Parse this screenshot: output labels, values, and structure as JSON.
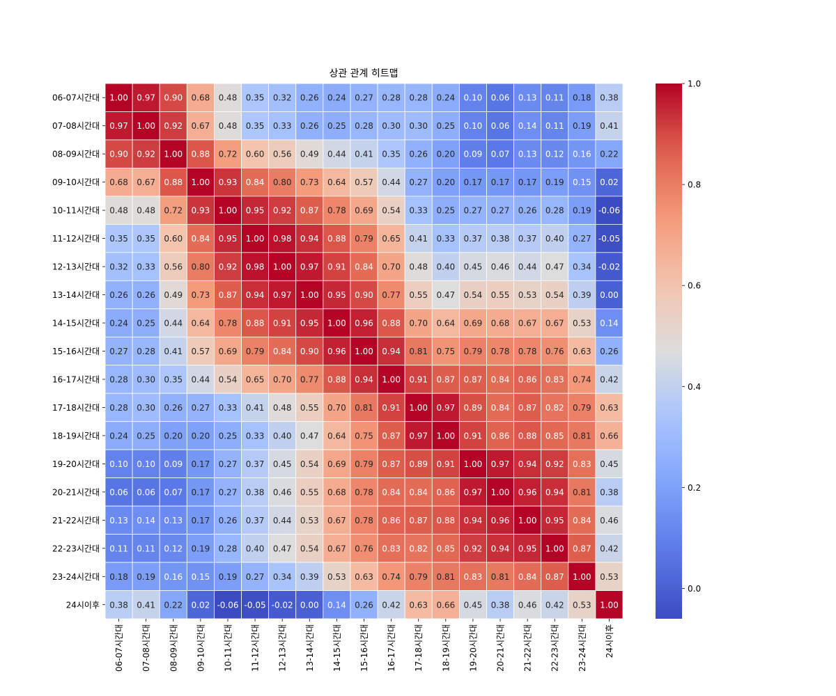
{
  "chart_data": {
    "type": "heatmap",
    "title": "상관 관계 히트맵",
    "labels": [
      "06-07시간대",
      "07-08시간대",
      "08-09시간대",
      "09-10시간대",
      "10-11시간대",
      "11-12시간대",
      "12-13시간대",
      "13-14시간대",
      "14-15시간대",
      "15-16시간대",
      "16-17시간대",
      "17-18시간대",
      "18-19시간대",
      "19-20시간대",
      "20-21시간대",
      "21-22시간대",
      "22-23시간대",
      "23-24시간대",
      "24시이후"
    ],
    "values": [
      [
        1.0,
        0.97,
        0.9,
        0.68,
        0.48,
        0.35,
        0.32,
        0.26,
        0.24,
        0.27,
        0.28,
        0.28,
        0.24,
        0.1,
        0.06,
        0.13,
        0.11,
        0.18,
        0.38
      ],
      [
        0.97,
        1.0,
        0.92,
        0.67,
        0.48,
        0.35,
        0.33,
        0.26,
        0.25,
        0.28,
        0.3,
        0.3,
        0.25,
        0.1,
        0.06,
        0.14,
        0.11,
        0.19,
        0.41
      ],
      [
        0.9,
        0.92,
        1.0,
        0.88,
        0.72,
        0.6,
        0.56,
        0.49,
        0.44,
        0.41,
        0.35,
        0.26,
        0.2,
        0.09,
        0.07,
        0.13,
        0.12,
        0.16,
        0.22
      ],
      [
        0.68,
        0.67,
        0.88,
        1.0,
        0.93,
        0.84,
        0.8,
        0.73,
        0.64,
        0.57,
        0.44,
        0.27,
        0.2,
        0.17,
        0.17,
        0.17,
        0.19,
        0.15,
        0.02
      ],
      [
        0.48,
        0.48,
        0.72,
        0.93,
        1.0,
        0.95,
        0.92,
        0.87,
        0.78,
        0.69,
        0.54,
        0.33,
        0.25,
        0.27,
        0.27,
        0.26,
        0.28,
        0.19,
        -0.06
      ],
      [
        0.35,
        0.35,
        0.6,
        0.84,
        0.95,
        1.0,
        0.98,
        0.94,
        0.88,
        0.79,
        0.65,
        0.41,
        0.33,
        0.37,
        0.38,
        0.37,
        0.4,
        0.27,
        -0.05
      ],
      [
        0.32,
        0.33,
        0.56,
        0.8,
        0.92,
        0.98,
        1.0,
        0.97,
        0.91,
        0.84,
        0.7,
        0.48,
        0.4,
        0.45,
        0.46,
        0.44,
        0.47,
        0.34,
        -0.02
      ],
      [
        0.26,
        0.26,
        0.49,
        0.73,
        0.87,
        0.94,
        0.97,
        1.0,
        0.95,
        0.9,
        0.77,
        0.55,
        0.47,
        0.54,
        0.55,
        0.53,
        0.54,
        0.39,
        -0.0
      ],
      [
        0.24,
        0.25,
        0.44,
        0.64,
        0.78,
        0.88,
        0.91,
        0.95,
        1.0,
        0.96,
        0.88,
        0.7,
        0.64,
        0.69,
        0.68,
        0.67,
        0.67,
        0.53,
        0.14
      ],
      [
        0.27,
        0.28,
        0.41,
        0.57,
        0.69,
        0.79,
        0.84,
        0.9,
        0.96,
        1.0,
        0.94,
        0.81,
        0.75,
        0.79,
        0.78,
        0.78,
        0.76,
        0.63,
        0.26
      ],
      [
        0.28,
        0.3,
        0.35,
        0.44,
        0.54,
        0.65,
        0.7,
        0.77,
        0.88,
        0.94,
        1.0,
        0.91,
        0.87,
        0.87,
        0.84,
        0.86,
        0.83,
        0.74,
        0.42
      ],
      [
        0.28,
        0.3,
        0.26,
        0.27,
        0.33,
        0.41,
        0.48,
        0.55,
        0.7,
        0.81,
        0.91,
        1.0,
        0.97,
        0.89,
        0.84,
        0.87,
        0.82,
        0.79,
        0.63
      ],
      [
        0.24,
        0.25,
        0.2,
        0.2,
        0.25,
        0.33,
        0.4,
        0.47,
        0.64,
        0.75,
        0.87,
        0.97,
        1.0,
        0.91,
        0.86,
        0.88,
        0.85,
        0.81,
        0.66
      ],
      [
        0.1,
        0.1,
        0.09,
        0.17,
        0.27,
        0.37,
        0.45,
        0.54,
        0.69,
        0.79,
        0.87,
        0.89,
        0.91,
        1.0,
        0.97,
        0.94,
        0.92,
        0.83,
        0.45
      ],
      [
        0.06,
        0.06,
        0.07,
        0.17,
        0.27,
        0.38,
        0.46,
        0.55,
        0.68,
        0.78,
        0.84,
        0.84,
        0.86,
        0.97,
        1.0,
        0.96,
        0.94,
        0.81,
        0.38
      ],
      [
        0.13,
        0.14,
        0.13,
        0.17,
        0.26,
        0.37,
        0.44,
        0.53,
        0.67,
        0.78,
        0.86,
        0.87,
        0.88,
        0.94,
        0.96,
        1.0,
        0.95,
        0.84,
        0.46
      ],
      [
        0.11,
        0.11,
        0.12,
        0.19,
        0.28,
        0.4,
        0.47,
        0.54,
        0.67,
        0.76,
        0.83,
        0.82,
        0.85,
        0.92,
        0.94,
        0.95,
        1.0,
        0.87,
        0.42
      ],
      [
        0.18,
        0.19,
        0.16,
        0.15,
        0.19,
        0.27,
        0.34,
        0.39,
        0.53,
        0.63,
        0.74,
        0.79,
        0.81,
        0.83,
        0.81,
        0.84,
        0.87,
        1.0,
        0.53
      ],
      [
        0.38,
        0.41,
        0.22,
        0.02,
        -0.06,
        -0.05,
        -0.02,
        -0.0,
        0.14,
        0.26,
        0.42,
        0.63,
        0.66,
        0.45,
        0.38,
        0.46,
        0.42,
        0.53,
        1.0
      ]
    ],
    "vmin": -0.06,
    "vmax": 1.0,
    "colormap": "coolwarm",
    "colorbar_ticks": [
      "0.0",
      "0.2",
      "0.4",
      "0.6",
      "0.8",
      "1.0"
    ],
    "annotation_format": "2 decimals"
  }
}
